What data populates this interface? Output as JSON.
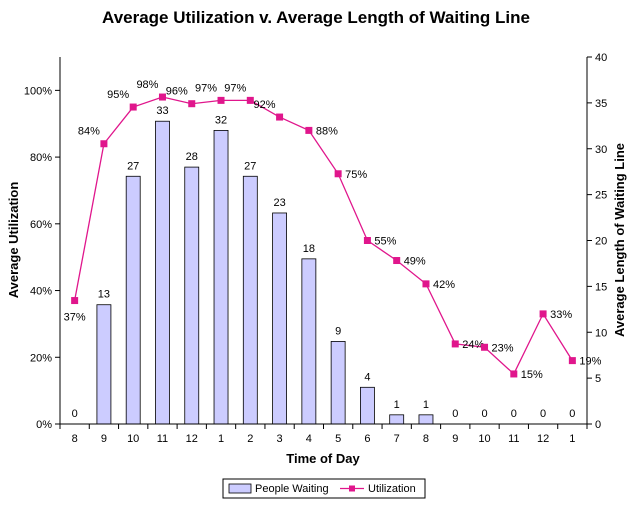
{
  "chart_data": {
    "type": "bar+line",
    "title": "Average Utilization v. Average Length of Waiting Line",
    "xlabel": "Time of Day",
    "ylabel_left": "Average Utilization",
    "ylabel_right": "Average Length of Waiting Line",
    "categories": [
      "8",
      "9",
      "10",
      "11",
      "12",
      "1",
      "2",
      "3",
      "4",
      "5",
      "6",
      "7",
      "8",
      "9",
      "10",
      "11",
      "12",
      "1"
    ],
    "y_left_ticks": [
      "0%",
      "20%",
      "40%",
      "60%",
      "80%",
      "100%"
    ],
    "y_left_range": [
      0,
      110
    ],
    "y_right_ticks": [
      "0",
      "5",
      "10",
      "15",
      "20",
      "25",
      "30",
      "35",
      "40"
    ],
    "y_right_range": [
      0,
      40
    ],
    "series": [
      {
        "name": "People Waiting",
        "kind": "bar",
        "axis": "right",
        "color": "#ccccff",
        "values": [
          0,
          13,
          27,
          33,
          28,
          32,
          27,
          23,
          18,
          9,
          4,
          1,
          1,
          0,
          0,
          0,
          0,
          0
        ],
        "labels": [
          "0",
          "13",
          "27",
          "33",
          "28",
          "32",
          "27",
          "23",
          "18",
          "9",
          "4",
          "1",
          "1",
          "0",
          "0",
          "0",
          "0",
          "0"
        ]
      },
      {
        "name": "Utilization",
        "kind": "line",
        "axis": "left",
        "color": "#e0168c",
        "values": [
          37,
          84,
          95,
          98,
          96,
          97,
          97,
          92,
          88,
          75,
          55,
          49,
          42,
          24,
          23,
          15,
          33,
          19
        ],
        "labels": [
          "37%",
          "84%",
          "95%",
          "98%",
          "96%",
          "97%",
          "97%",
          "92%",
          "88%",
          "75%",
          "55%",
          "49%",
          "42%",
          "24%",
          "23%",
          "15%",
          "33%",
          "19%"
        ]
      }
    ],
    "legend_position": "bottom",
    "grid": false
  }
}
